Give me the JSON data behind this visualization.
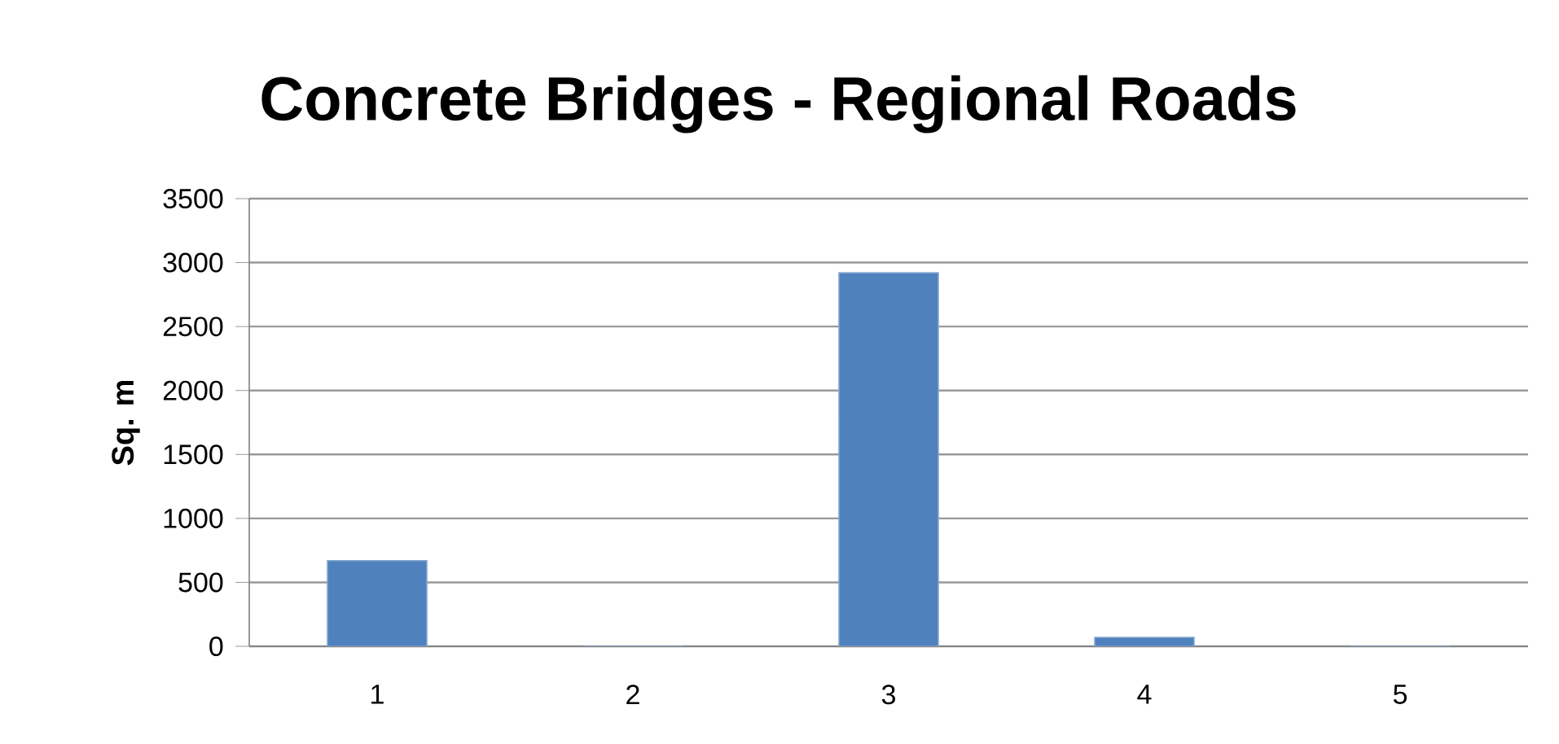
{
  "chart_data": {
    "type": "bar",
    "title": "Concrete Bridges - Regional Roads",
    "ylabel": "Sq. m",
    "categories": [
      "1",
      "2",
      "3",
      "4",
      "5"
    ],
    "values": [
      670,
      0,
      2920,
      70,
      0
    ],
    "color": "#4f81bd",
    "ylim": [
      0,
      3500
    ],
    "yticks": [
      0,
      500,
      1000,
      1500,
      2000,
      2500,
      3000,
      3500
    ],
    "grid": "y"
  }
}
